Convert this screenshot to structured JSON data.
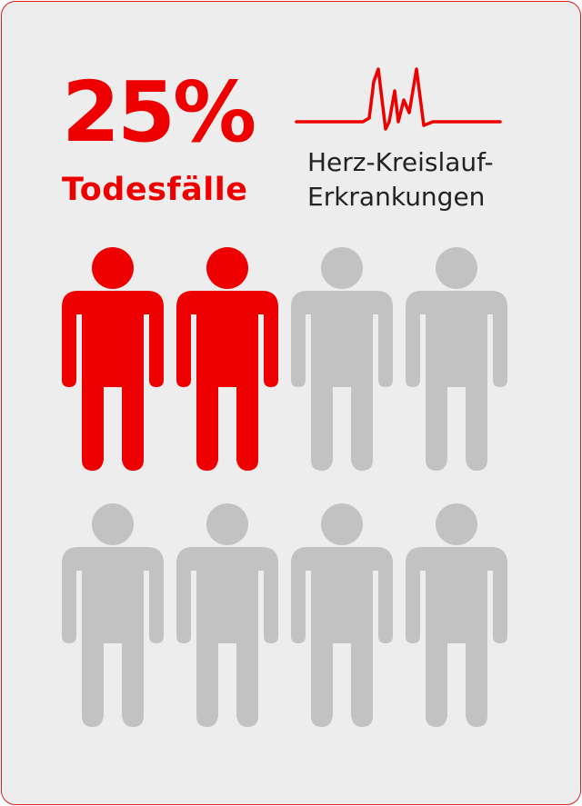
{
  "stat": {
    "percent": "25%",
    "label": "Todesfälle"
  },
  "condition": {
    "line1": "Herz-Kreislauf-",
    "line2": "Erkrankungen"
  },
  "people": {
    "total": 8,
    "highlighted": 2,
    "highlight_color": "#ee0000",
    "base_color": "#c2c2c2"
  },
  "colors": {
    "accent": "#ee0000",
    "text": "#222222",
    "background": "#ededed",
    "border": "#e02020"
  },
  "icons": {
    "pulse": "heartbeat-line-icon",
    "person": "person-icon"
  }
}
